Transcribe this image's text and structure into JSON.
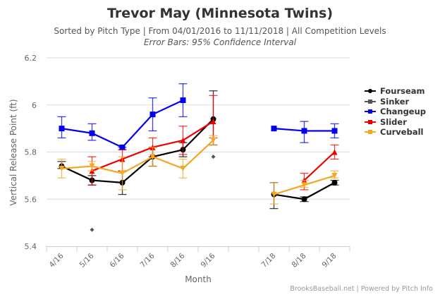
{
  "header": {
    "title": "Trevor May (Minnesota Twins)",
    "subtitle": "Sorted by Pitch Type | From 04/01/2016 to 11/11/2018 | All Competition Levels",
    "subtitle2": "Error Bars: 95% Confidence Interval"
  },
  "credits": "BrooksBaseball.net | Powered by Pitch Info",
  "chart_data": {
    "type": "line",
    "title": "Trevor May (Minnesota Twins)",
    "xlabel": "Month",
    "ylabel": "Vertical Release Point (ft)",
    "ylim": [
      5.4,
      6.2
    ],
    "yticks": [
      "5.4",
      "5.6",
      "5.8",
      "6",
      "6.2"
    ],
    "ytick_values": [
      5.4,
      5.6,
      5.8,
      6.0,
      6.2
    ],
    "categories": [
      "4/16",
      "5/16",
      "6/16",
      "7/16",
      "8/16",
      "9/16",
      "",
      "7/18",
      "8/18",
      "9/18"
    ],
    "grid": true,
    "legend_position": "right",
    "series": [
      {
        "name": "Fourseam",
        "color": "#000000",
        "marker": "circle",
        "values": [
          5.74,
          5.68,
          5.67,
          5.78,
          5.81,
          5.94,
          null,
          5.62,
          5.6,
          5.67
        ],
        "error_low": [
          5.73,
          5.66,
          5.62,
          5.74,
          5.78,
          5.83,
          null,
          5.56,
          5.59,
          5.66
        ],
        "error_high": [
          5.76,
          5.7,
          5.72,
          5.82,
          5.84,
          6.06,
          null,
          5.67,
          5.61,
          5.68
        ]
      },
      {
        "name": "Sinker",
        "color": "#555555",
        "marker": "diamond",
        "values": [
          null,
          5.47,
          null,
          null,
          null,
          5.78,
          null,
          null,
          null,
          null
        ],
        "error_low": [
          null,
          null,
          null,
          null,
          null,
          null,
          null,
          null,
          null,
          null
        ],
        "error_high": [
          null,
          null,
          null,
          null,
          null,
          null,
          null,
          null,
          null,
          null
        ]
      },
      {
        "name": "Changeup",
        "color": "#0000ee",
        "marker": "square",
        "values": [
          5.9,
          5.88,
          5.82,
          5.96,
          6.02,
          null,
          null,
          5.9,
          5.89,
          5.89
        ],
        "error_low": [
          5.86,
          5.85,
          5.81,
          5.89,
          5.95,
          null,
          null,
          null,
          5.84,
          5.86
        ],
        "error_high": [
          5.95,
          5.92,
          5.82,
          6.03,
          6.09,
          null,
          null,
          null,
          5.93,
          5.92
        ]
      },
      {
        "name": "Slider",
        "color": "#ee0000",
        "marker": "triangle",
        "values": [
          null,
          5.72,
          5.77,
          5.82,
          5.85,
          5.93,
          null,
          null,
          5.68,
          5.8
        ],
        "error_low": [
          null,
          5.66,
          5.72,
          5.78,
          5.79,
          5.86,
          null,
          null,
          5.64,
          5.77
        ],
        "error_high": [
          null,
          5.78,
          5.81,
          5.86,
          5.91,
          6.04,
          null,
          null,
          5.71,
          5.83
        ]
      },
      {
        "name": "Curveball",
        "color": "#f5a623",
        "marker": "triangle-down",
        "values": [
          5.73,
          5.74,
          5.71,
          5.78,
          5.73,
          5.85,
          null,
          5.62,
          5.66,
          5.7
        ],
        "error_low": [
          5.69,
          5.72,
          5.64,
          5.74,
          5.69,
          5.83,
          null,
          5.58,
          5.65,
          5.69
        ],
        "error_high": [
          5.77,
          5.76,
          5.78,
          5.82,
          5.77,
          5.87,
          null,
          5.67,
          5.68,
          5.72
        ]
      }
    ]
  }
}
